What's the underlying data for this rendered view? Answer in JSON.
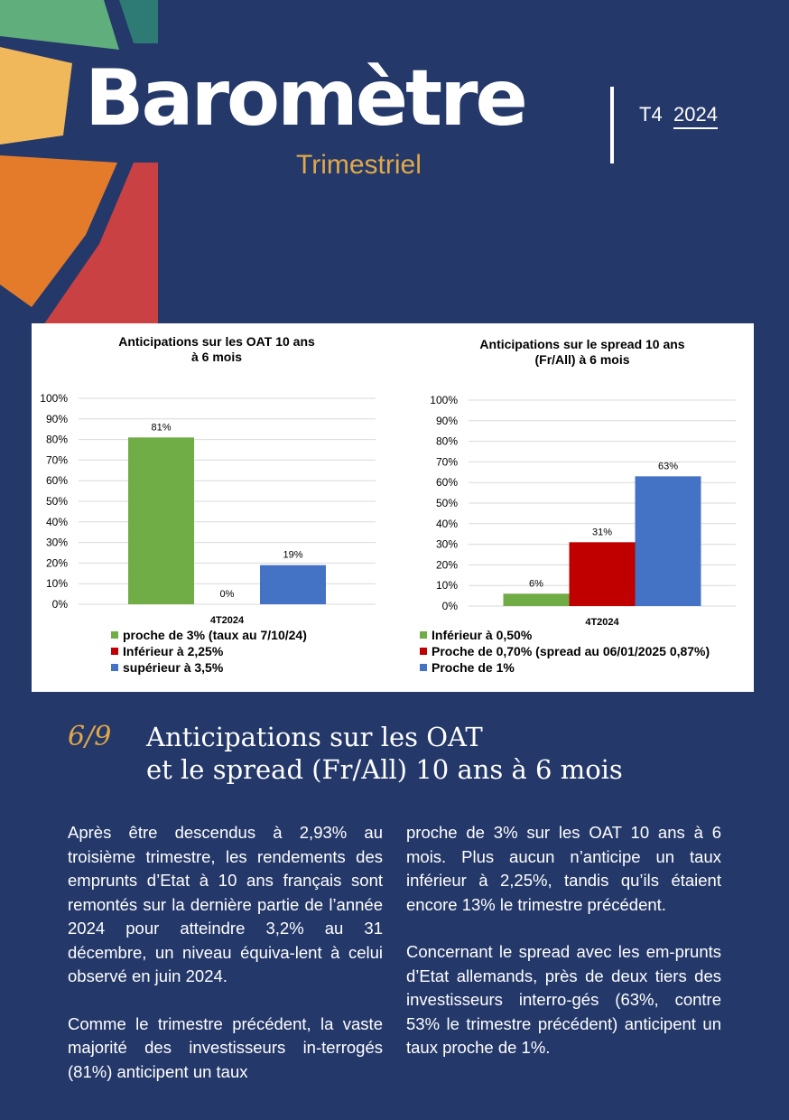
{
  "header": {
    "logo_text": "Baromètre",
    "subtitle": "Trimestriel",
    "quarter": "T4",
    "year": "2024"
  },
  "colors": {
    "background": "#24386a",
    "accent": "#e0a848",
    "green": "#70ad47",
    "red": "#c00000",
    "blue": "#4472c4"
  },
  "chart_data": [
    {
      "type": "bar",
      "title_lines": [
        "Anticipations sur les OAT 10 ans",
        "à 6 mois"
      ],
      "categories": [
        "4T2024"
      ],
      "ylim": [
        0,
        100
      ],
      "yticks": [
        "0%",
        "10%",
        "20%",
        "30%",
        "40%",
        "50%",
        "60%",
        "70%",
        "80%",
        "90%",
        "100%"
      ],
      "grid": true,
      "legend_position": "bottom",
      "series": [
        {
          "name": "proche de 3% (taux au 7/10/24)",
          "values": [
            81
          ],
          "label": "81%",
          "color": "#70ad47"
        },
        {
          "name": "Inférieur à 2,25%",
          "values": [
            0
          ],
          "label": "0%",
          "color": "#c00000"
        },
        {
          "name": "supérieur à 3,5%",
          "values": [
            19
          ],
          "label": "19%",
          "color": "#4472c4"
        }
      ]
    },
    {
      "type": "bar",
      "title_lines": [
        "Anticipations sur le spread 10 ans",
        "(Fr/All) à 6 mois"
      ],
      "categories": [
        "4T2024"
      ],
      "ylim": [
        0,
        100
      ],
      "yticks": [
        "0%",
        "10%",
        "20%",
        "30%",
        "40%",
        "50%",
        "60%",
        "70%",
        "80%",
        "90%",
        "100%"
      ],
      "grid": true,
      "legend_position": "bottom",
      "series": [
        {
          "name": "Inférieur à 0,50%",
          "values": [
            6
          ],
          "label": "6%",
          "color": "#70ad47"
        },
        {
          "name": "Proche de 0,70% (spread au 06/01/2025 0,87%)",
          "values": [
            31
          ],
          "label": "31%",
          "color": "#c00000"
        },
        {
          "name": "Proche de 1%",
          "values": [
            63
          ],
          "label": "63%",
          "color": "#4472c4"
        }
      ]
    }
  ],
  "section": {
    "number": "6/9",
    "title_line1": "Anticipations sur les OAT",
    "title_line2": "et le spread (Fr/All) 10 ans à 6 mois"
  },
  "body": {
    "p1": "Après être descendus à 2,93% au troisième trimestre, les rendements des emprunts d’Etat à 10 ans français sont remontés sur la dernière partie de l’année 2024 pour atteindre 3,2% au 31 décembre, un niveau équiva-lent à celui observé en juin 2024.",
    "p2": "Comme le trimestre précédent, la vaste majorité des investisseurs in-terrogés (81%) anticipent un taux proche de 3% sur les OAT 10 ans à 6 mois. Plus aucun n’anticipe un taux inférieur à 2,25%, tandis qu’ils étaient encore 13% le trimestre précédent.",
    "p3": "Concernant le spread avec les em-prunts d’Etat allemands, près de deux tiers des investisseurs interro-gés (63%, contre 53% le trimestre précédent) anticipent un taux proche de 1%."
  }
}
